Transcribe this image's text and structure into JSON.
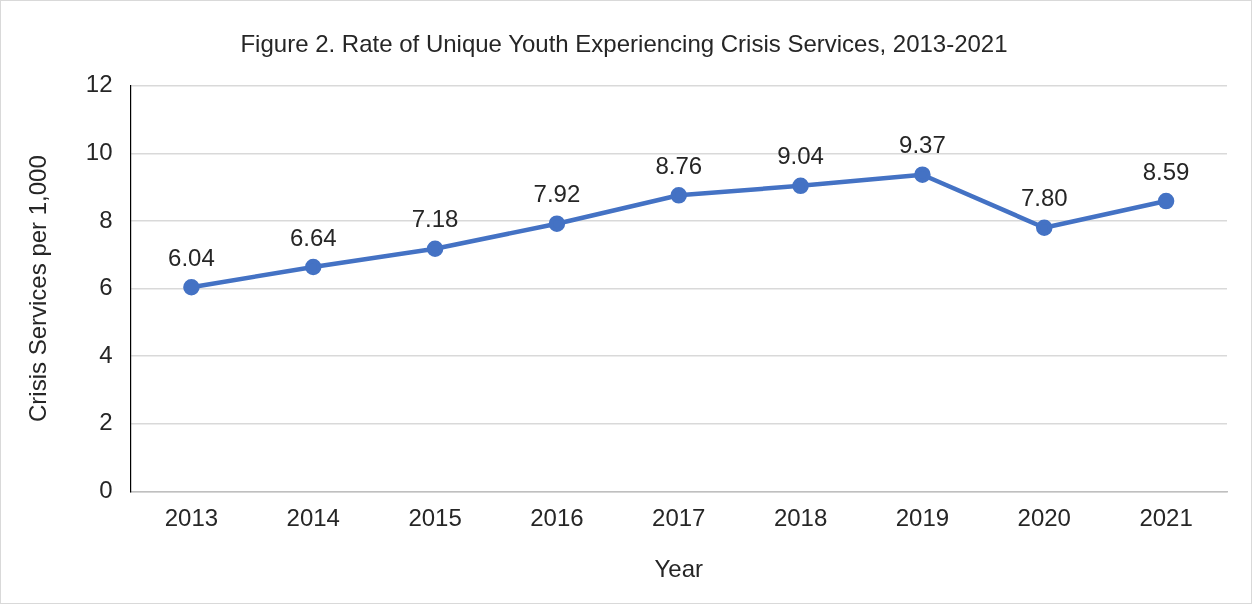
{
  "chart_data": {
    "type": "line",
    "title": "Figure 2. Rate of Unique Youth Experiencing Crisis Services, 2013-2021",
    "xlabel": "Year",
    "ylabel": "Crisis Services per 1,000",
    "categories": [
      "2013",
      "2014",
      "2015",
      "2016",
      "2017",
      "2018",
      "2019",
      "2020",
      "2021"
    ],
    "series": [
      {
        "color": "#4472c4",
        "values": [
          6.04,
          6.64,
          7.18,
          7.92,
          8.76,
          9.04,
          9.37,
          7.8,
          8.59
        ],
        "value_labels": [
          "6.04",
          "6.64",
          "7.18",
          "7.92",
          "8.76",
          "9.04",
          "9.37",
          "7.80",
          "8.59"
        ]
      }
    ],
    "ylim": [
      0,
      12
    ],
    "yticks": [
      0,
      2,
      4,
      6,
      8,
      10,
      12
    ],
    "grid": "y",
    "legend": false,
    "marker": "circle",
    "line_style": "solid"
  }
}
